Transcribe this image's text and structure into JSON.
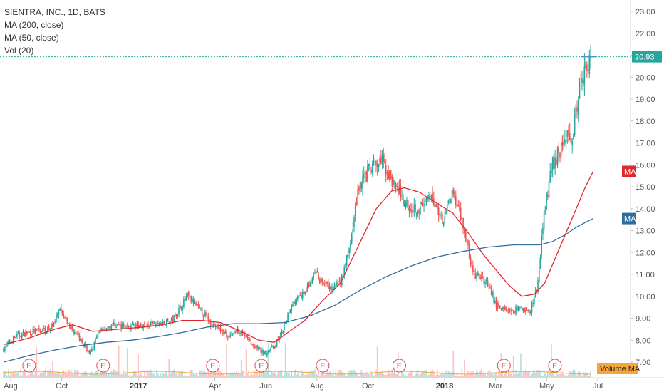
{
  "legend": {
    "title": "SIENTRA, INC., 1D, BATS",
    "ma200": "MA (200, close)",
    "ma50": "MA (50, close)",
    "vol": "Vol (20)"
  },
  "colors": {
    "up": "#26a69a",
    "down": "#ef5350",
    "ma50": "#e0262c",
    "ma200": "#2e6e9e",
    "price_tag": "#26a69a",
    "volume_ma_tag": "#f5a53a",
    "earnings": "#e0474c"
  },
  "chart_data": {
    "type": "candlestick",
    "y_ticks": [
      "7.00",
      "8.00",
      "9.00",
      "10.00",
      "11.00",
      "12.00",
      "13.00",
      "14.00",
      "15.00",
      "16.00",
      "17.00",
      "18.00",
      "19.00",
      "20.00",
      "21.00",
      "22.00",
      "23.00"
    ],
    "ylim": [
      6.6,
      23.25
    ],
    "x_ticks": [
      {
        "label": "Aug",
        "bold": false
      },
      {
        "label": "Oct",
        "bold": false
      },
      {
        "label": "2017",
        "bold": true
      },
      {
        "label": "Apr",
        "bold": false
      },
      {
        "label": "Jun",
        "bold": false
      },
      {
        "label": "Aug",
        "bold": false
      },
      {
        "label": "Oct",
        "bold": false
      },
      {
        "label": "2018",
        "bold": true
      },
      {
        "label": "Mar",
        "bold": false
      },
      {
        "label": "May",
        "bold": false
      },
      {
        "label": "Jul",
        "bold": false
      }
    ],
    "x_tick_months": [
      0,
      2,
      5,
      8,
      10,
      12,
      14,
      17,
      19,
      21,
      23
    ],
    "xlim_months": [
      0,
      24.2
    ],
    "last_price": "20.93",
    "last_price_value": 20.93,
    "ma50_tag": "MA",
    "ma200_tag": "MA",
    "ma50_last": 15.7,
    "ma200_last": 13.55,
    "volume_ma_label": "Volume MA",
    "earnings_marker": "E",
    "earnings_months": [
      0.5,
      3.4,
      7.7,
      9.6,
      12.0,
      15.0,
      19.1,
      21.1
    ],
    "price_anchors": [
      [
        0,
        7.6
      ],
      [
        0.5,
        8.2
      ],
      [
        1.2,
        8.4
      ],
      [
        1.8,
        8.5
      ],
      [
        2.2,
        9.3
      ],
      [
        2.6,
        8.6
      ],
      [
        3.0,
        8.0
      ],
      [
        3.4,
        7.4
      ],
      [
        3.8,
        8.5
      ],
      [
        4.3,
        8.7
      ],
      [
        5.0,
        8.6
      ],
      [
        5.5,
        8.7
      ],
      [
        6.0,
        8.7
      ],
      [
        6.6,
        8.9
      ],
      [
        7.2,
        10.0
      ],
      [
        7.6,
        9.5
      ],
      [
        8.2,
        8.7
      ],
      [
        8.8,
        8.2
      ],
      [
        9.3,
        8.5
      ],
      [
        9.7,
        7.8
      ],
      [
        10.2,
        7.4
      ],
      [
        10.6,
        7.7
      ],
      [
        11.0,
        8.6
      ],
      [
        11.3,
        9.7
      ],
      [
        11.7,
        10.0
      ],
      [
        12.2,
        11.0
      ],
      [
        12.8,
        10.3
      ],
      [
        13.2,
        10.6
      ],
      [
        13.6,
        12.4
      ],
      [
        13.9,
        15.0
      ],
      [
        14.3,
        15.7
      ],
      [
        14.8,
        16.2
      ],
      [
        15.3,
        15.1
      ],
      [
        15.8,
        14.2
      ],
      [
        16.3,
        14.0
      ],
      [
        16.8,
        14.5
      ],
      [
        17.2,
        13.5
      ],
      [
        17.6,
        14.9
      ],
      [
        18.0,
        13.3
      ],
      [
        18.4,
        11.0
      ],
      [
        18.9,
        10.7
      ],
      [
        19.3,
        9.6
      ],
      [
        19.8,
        9.3
      ],
      [
        20.3,
        9.5
      ],
      [
        20.6,
        9.2
      ],
      [
        20.9,
        10.4
      ],
      [
        21.2,
        14.0
      ],
      [
        21.5,
        16.0
      ],
      [
        21.9,
        17.0
      ],
      [
        22.3,
        17.5
      ],
      [
        22.6,
        19.5
      ],
      [
        22.8,
        20.6
      ],
      [
        23.0,
        20.93
      ]
    ],
    "ma50_points": [
      [
        0,
        7.8
      ],
      [
        1.0,
        8.1
      ],
      [
        2.0,
        8.5
      ],
      [
        2.7,
        8.7
      ],
      [
        3.5,
        8.4
      ],
      [
        4.5,
        8.5
      ],
      [
        5.5,
        8.6
      ],
      [
        6.2,
        8.7
      ],
      [
        7.0,
        8.9
      ],
      [
        7.8,
        8.9
      ],
      [
        8.5,
        8.8
      ],
      [
        9.3,
        8.4
      ],
      [
        10.0,
        8.0
      ],
      [
        10.6,
        7.9
      ],
      [
        11.2,
        8.4
      ],
      [
        11.8,
        8.9
      ],
      [
        12.5,
        9.8
      ],
      [
        13.2,
        10.6
      ],
      [
        13.9,
        12.3
      ],
      [
        14.6,
        14.0
      ],
      [
        15.2,
        14.8
      ],
      [
        15.7,
        14.95
      ],
      [
        16.3,
        14.75
      ],
      [
        16.9,
        14.3
      ],
      [
        17.6,
        13.8
      ],
      [
        18.2,
        12.9
      ],
      [
        18.8,
        11.9
      ],
      [
        19.3,
        11.2
      ],
      [
        19.8,
        10.5
      ],
      [
        20.3,
        10.0
      ],
      [
        20.8,
        10.1
      ],
      [
        21.2,
        10.6
      ],
      [
        21.6,
        11.7
      ],
      [
        22.0,
        12.8
      ],
      [
        22.4,
        13.9
      ],
      [
        22.8,
        15.0
      ],
      [
        23.1,
        15.7
      ]
    ],
    "ma200_points": [
      [
        0,
        7.0
      ],
      [
        1.0,
        7.3
      ],
      [
        2.0,
        7.55
      ],
      [
        3.0,
        7.75
      ],
      [
        4.0,
        7.9
      ],
      [
        5.0,
        8.0
      ],
      [
        6.0,
        8.15
      ],
      [
        7.0,
        8.35
      ],
      [
        8.0,
        8.6
      ],
      [
        9.0,
        8.75
      ],
      [
        10.0,
        8.75
      ],
      [
        11.0,
        8.8
      ],
      [
        12.0,
        9.1
      ],
      [
        13.0,
        9.6
      ],
      [
        14.0,
        10.3
      ],
      [
        15.0,
        10.9
      ],
      [
        16.0,
        11.4
      ],
      [
        17.0,
        11.8
      ],
      [
        18.0,
        12.05
      ],
      [
        19.0,
        12.25
      ],
      [
        20.0,
        12.35
      ],
      [
        21.0,
        12.35
      ],
      [
        21.5,
        12.5
      ],
      [
        22.0,
        12.8
      ],
      [
        22.5,
        13.2
      ],
      [
        23.1,
        13.55
      ]
    ]
  }
}
